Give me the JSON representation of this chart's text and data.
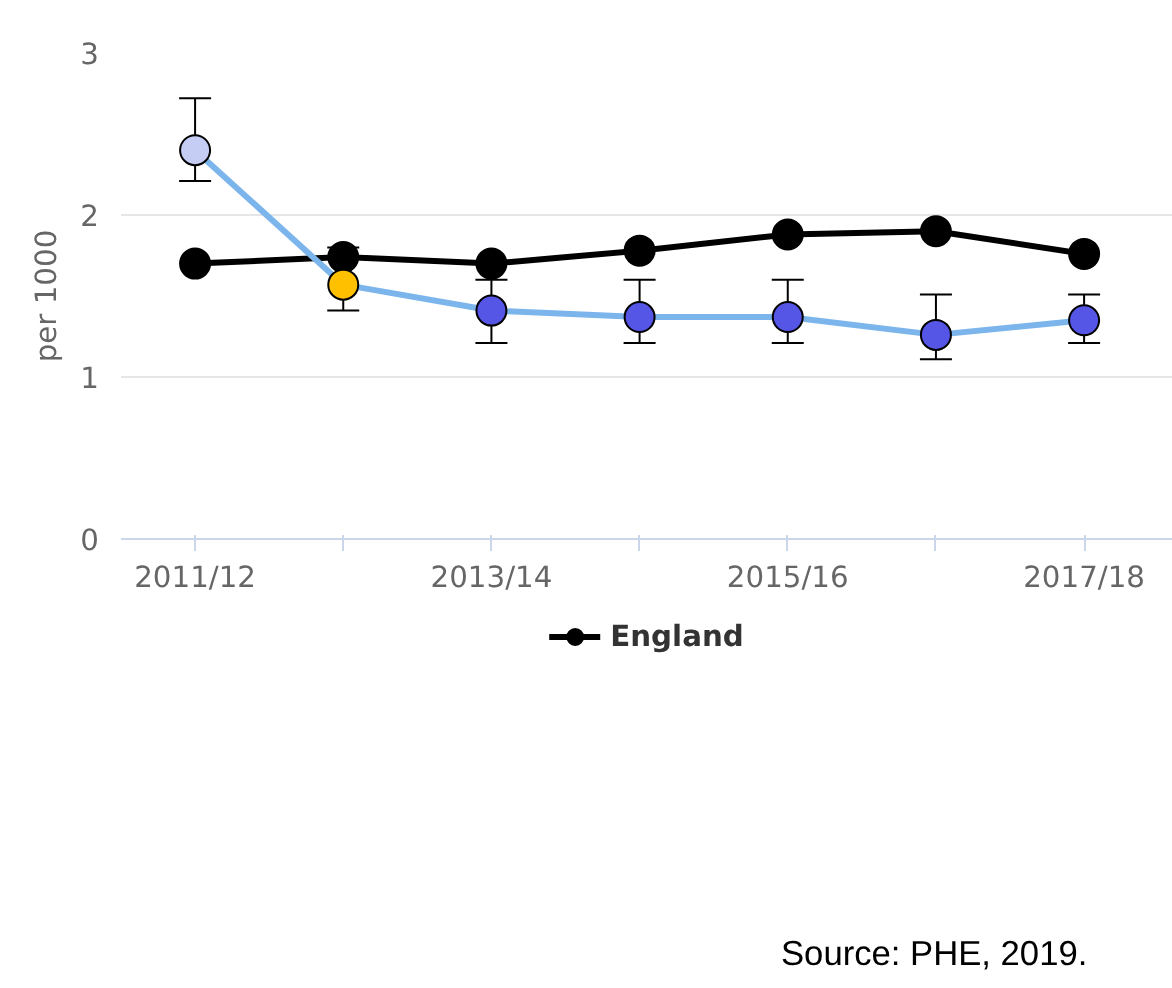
{
  "chart_data": {
    "type": "line",
    "ylabel": "per 1000",
    "categories": [
      "2011/12",
      null,
      "2013/14",
      null,
      "2015/16",
      null,
      "2017/18"
    ],
    "ylim": [
      0,
      3
    ],
    "yticks": [
      0,
      1,
      2,
      3
    ],
    "grid": "y",
    "legend": "bottom",
    "marker": "circle",
    "line_style": "solid",
    "series": [
      {
        "name": "England",
        "color": "#000000",
        "values": [
          1.7,
          1.74,
          1.7,
          1.78,
          1.88,
          1.9,
          1.76
        ]
      },
      {
        "color": "#7cb5ec",
        "colors": [
          "#c5cdf5",
          "#ffc000",
          "#5555e6",
          "#5555e6",
          "#5555e6",
          "#5555e6",
          "#5555e6"
        ],
        "values": [
          2.4,
          1.57,
          1.41,
          1.37,
          1.37,
          1.26,
          1.35
        ],
        "errors": [
          [
            2.21,
            2.72
          ],
          [
            1.41,
            1.8
          ],
          [
            1.21,
            1.6
          ],
          [
            1.21,
            1.6
          ],
          [
            1.21,
            1.6
          ],
          [
            1.11,
            1.51
          ],
          [
            1.21,
            1.51
          ]
        ]
      }
    ],
    "annotations": [
      "Source: PHE, 2019."
    ]
  }
}
